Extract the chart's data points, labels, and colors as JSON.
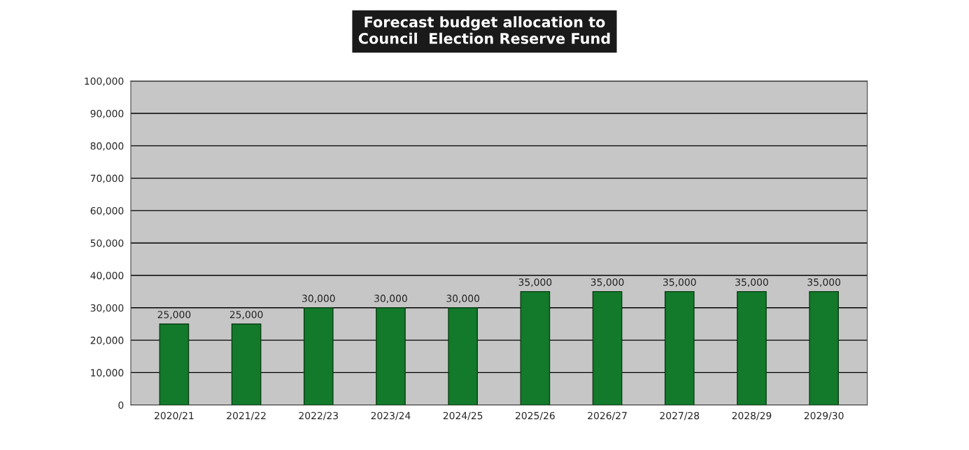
{
  "chart_data": {
    "type": "bar",
    "title": "Forecast budget allocation to\nCouncil  Election Reserve Fund",
    "categories": [
      "2020/21",
      "2021/22",
      "2022/23",
      "2023/24",
      "2024/25",
      "2025/26",
      "2026/27",
      "2027/28",
      "2028/29",
      "2029/30"
    ],
    "values": [
      25000,
      25000,
      30000,
      30000,
      30000,
      35000,
      35000,
      35000,
      35000,
      35000
    ],
    "value_labels": [
      "25,000",
      "25,000",
      "30,000",
      "30,000",
      "30,000",
      "35,000",
      "35,000",
      "35,000",
      "35,000",
      "35,000"
    ],
    "color": "#127a2a",
    "ylim": [
      0,
      100000
    ],
    "yticks": [
      {
        "value": 0,
        "label": "0"
      },
      {
        "value": 10000,
        "label": "10,000"
      },
      {
        "value": 20000,
        "label": "20,000"
      },
      {
        "value": 30000,
        "label": "30,000"
      },
      {
        "value": 40000,
        "label": "40,000"
      },
      {
        "value": 50000,
        "label": "50,000"
      },
      {
        "value": 60000,
        "label": "60,000"
      },
      {
        "value": 70000,
        "label": "70,000"
      },
      {
        "value": 80000,
        "label": "80,000"
      },
      {
        "value": 90000,
        "label": "90,000"
      },
      {
        "value": 100000,
        "label": "100,000"
      }
    ],
    "grid": "y",
    "legend": false
  }
}
